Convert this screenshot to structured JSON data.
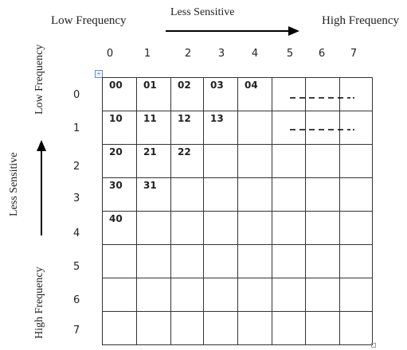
{
  "top_labels": {
    "low": "Low Frequency",
    "less": "Less Sensitive",
    "high": "High Frequency"
  },
  "left_labels": {
    "low": "Low Frequency",
    "less": "Less Sensitive",
    "high": "High Frequency"
  },
  "col_numbers": [
    "0",
    "1",
    "2",
    "3",
    "4",
    "5",
    "6",
    "7"
  ],
  "row_numbers": [
    "0",
    "1",
    "2",
    "3",
    "4",
    "5",
    "6",
    "7"
  ],
  "grid": [
    [
      "00",
      "01",
      "02",
      "03",
      "04",
      "",
      "",
      ""
    ],
    [
      "10",
      "11",
      "12",
      "13",
      "",
      "",
      "",
      ""
    ],
    [
      "20",
      "21",
      "22",
      "",
      "",
      "",
      "",
      ""
    ],
    [
      "30",
      "31",
      "",
      "",
      "",
      "",
      "",
      ""
    ],
    [
      "40",
      "",
      "",
      "",
      "",
      "",
      "",
      ""
    ],
    [
      "",
      "",
      "",
      "",
      "",
      "",
      "",
      ""
    ],
    [
      "",
      "",
      "",
      "",
      "",
      "",
      "",
      ""
    ],
    [
      "",
      "",
      "",
      "",
      "",
      "",
      "",
      ""
    ]
  ],
  "icons": {
    "table_anchor": "table-move-handle-icon",
    "resize_handle": "table-resize-handle-icon",
    "right_arrow": "arrow-right-icon",
    "up_arrow": "arrow-up-icon"
  }
}
